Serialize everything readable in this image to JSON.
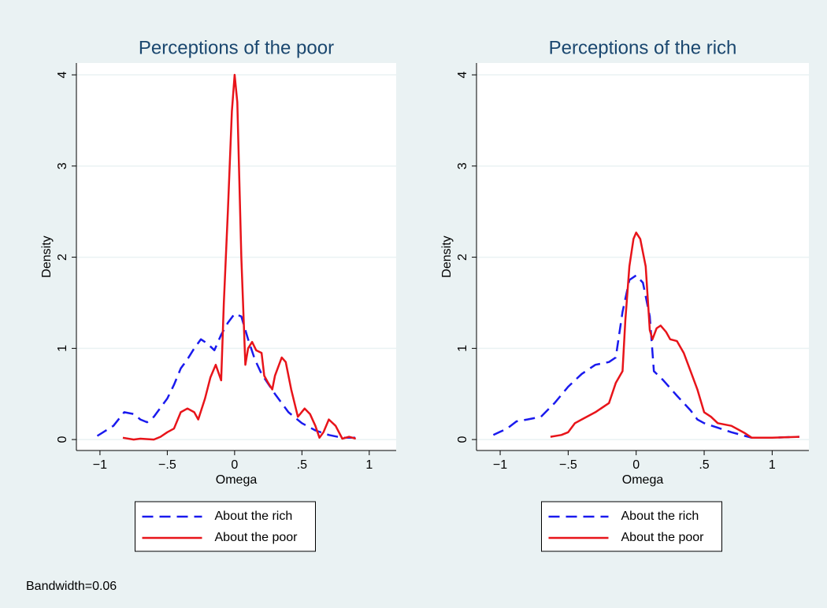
{
  "chart_data": [
    {
      "type": "line",
      "title": "Perceptions of the poor",
      "xlabel": "Omega",
      "ylabel": "Density",
      "xlim": [
        -1.175,
        1.2
      ],
      "ylim": [
        -0.12,
        4.13
      ],
      "xticks": [
        {
          "value": -1,
          "label": "−1"
        },
        {
          "value": -0.5,
          "label": "−.5"
        },
        0,
        {
          "value": 0.5,
          "label": ".5"
        },
        1
      ],
      "yticks": [
        0,
        1,
        2,
        3,
        4
      ],
      "grid": true,
      "legend": "bottom",
      "series": [
        {
          "name": "About the rich",
          "color": "#1a1aee",
          "linestyle": "dashed",
          "x": [
            -1.02,
            -0.9,
            -0.82,
            -0.75,
            -0.7,
            -0.65,
            -0.6,
            -0.5,
            -0.45,
            -0.4,
            -0.35,
            -0.3,
            -0.25,
            -0.2,
            -0.15,
            -0.1,
            -0.05,
            0,
            0.05,
            0.1,
            0.15,
            0.2,
            0.3,
            0.4,
            0.5,
            0.6,
            0.7,
            0.8,
            0.93
          ],
          "values": [
            0.04,
            0.15,
            0.3,
            0.28,
            0.22,
            0.19,
            0.25,
            0.45,
            0.6,
            0.78,
            0.88,
            1.0,
            1.1,
            1.05,
            0.98,
            1.15,
            1.28,
            1.38,
            1.35,
            1.1,
            0.88,
            0.72,
            0.5,
            0.3,
            0.18,
            0.1,
            0.05,
            0.02,
            0.02
          ]
        },
        {
          "name": "About the poor",
          "color": "#e8141a",
          "linestyle": "solid",
          "x": [
            -0.83,
            -0.75,
            -0.7,
            -0.6,
            -0.55,
            -0.5,
            -0.45,
            -0.4,
            -0.35,
            -0.3,
            -0.27,
            -0.22,
            -0.18,
            -0.14,
            -0.1,
            -0.08,
            -0.05,
            -0.02,
            0,
            0.02,
            0.05,
            0.08,
            0.1,
            0.13,
            0.16,
            0.2,
            0.22,
            0.25,
            0.28,
            0.3,
            0.35,
            0.38,
            0.42,
            0.47,
            0.52,
            0.56,
            0.6,
            0.63,
            0.66,
            0.7,
            0.75,
            0.8,
            0.85,
            0.9
          ],
          "values": [
            0.02,
            0,
            0.01,
            0,
            0.03,
            0.08,
            0.12,
            0.3,
            0.34,
            0.3,
            0.22,
            0.45,
            0.68,
            0.82,
            0.65,
            1.5,
            2.5,
            3.6,
            4.0,
            3.7,
            2.0,
            0.82,
            1.0,
            1.07,
            0.98,
            0.95,
            0.7,
            0.62,
            0.55,
            0.7,
            0.9,
            0.85,
            0.55,
            0.25,
            0.34,
            0.28,
            0.15,
            0.02,
            0.08,
            0.22,
            0.15,
            0.01,
            0.03,
            0.01
          ]
        }
      ]
    },
    {
      "type": "line",
      "title": "Perceptions of the rich",
      "xlabel": "Omega",
      "ylabel": "Density",
      "xlim": [
        -1.174,
        1.27
      ],
      "ylim": [
        -0.12,
        4.13
      ],
      "xticks": [
        {
          "value": -1,
          "label": "−1"
        },
        {
          "value": -0.5,
          "label": "−.5"
        },
        0,
        {
          "value": 0.5,
          "label": ".5"
        },
        1
      ],
      "yticks": [
        0,
        1,
        2,
        3,
        4
      ],
      "grid": true,
      "legend": "bottom",
      "series": [
        {
          "name": "About the rich",
          "color": "#1a1aee",
          "linestyle": "dashed",
          "x": [
            -1.05,
            -0.95,
            -0.88,
            -0.8,
            -0.7,
            -0.6,
            -0.5,
            -0.4,
            -0.3,
            -0.2,
            -0.15,
            -0.1,
            -0.05,
            0,
            0.05,
            0.1,
            0.13,
            0.2,
            0.3,
            0.4,
            0.45,
            0.5,
            0.6,
            0.7,
            0.8,
            0.85,
            1.0,
            1.2
          ],
          "values": [
            0.05,
            0.12,
            0.2,
            0.22,
            0.25,
            0.4,
            0.58,
            0.72,
            0.82,
            0.85,
            0.9,
            1.4,
            1.75,
            1.8,
            1.72,
            1.35,
            0.75,
            0.65,
            0.48,
            0.32,
            0.22,
            0.18,
            0.13,
            0.08,
            0.04,
            0.02,
            0.02,
            0.03
          ]
        },
        {
          "name": "About the poor",
          "color": "#e8141a",
          "linestyle": "solid",
          "x": [
            -0.63,
            -0.55,
            -0.5,
            -0.45,
            -0.4,
            -0.3,
            -0.2,
            -0.15,
            -0.1,
            -0.08,
            -0.05,
            -0.02,
            0,
            0.03,
            0.07,
            0.1,
            0.12,
            0.15,
            0.18,
            0.22,
            0.25,
            0.3,
            0.35,
            0.4,
            0.45,
            0.5,
            0.55,
            0.6,
            0.7,
            0.8,
            0.85,
            1.0,
            1.2
          ],
          "values": [
            0.03,
            0.05,
            0.08,
            0.18,
            0.22,
            0.3,
            0.4,
            0.62,
            0.75,
            1.3,
            1.9,
            2.2,
            2.27,
            2.2,
            1.9,
            1.2,
            1.1,
            1.22,
            1.25,
            1.18,
            1.1,
            1.08,
            0.95,
            0.75,
            0.55,
            0.3,
            0.25,
            0.18,
            0.15,
            0.07,
            0.02,
            0.02,
            0.03
          ]
        }
      ]
    }
  ],
  "note": "Bandwidth=0.06"
}
